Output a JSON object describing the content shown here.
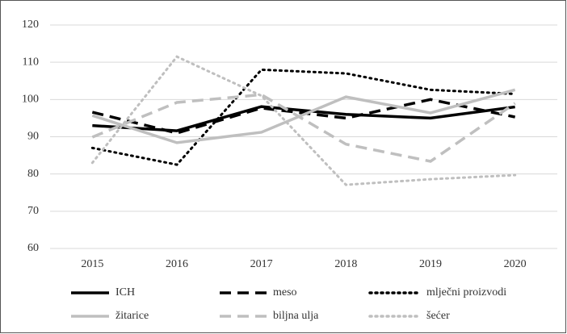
{
  "chart_data": {
    "type": "line",
    "categories": [
      "2015",
      "2016",
      "2017",
      "2018",
      "2019",
      "2020"
    ],
    "series": [
      {
        "name": "ICH",
        "color": "#000000",
        "dash": "solid",
        "values": [
          93,
          91.6,
          98.1,
          96,
          95,
          98
        ]
      },
      {
        "name": "meso",
        "color": "#000000",
        "dash": "dashed",
        "values": [
          96.6,
          91,
          97.7,
          95,
          100,
          95.3
        ]
      },
      {
        "name": "mlječni proizvodi",
        "color": "#000000",
        "dash": "dotted",
        "values": [
          87,
          82.5,
          108,
          107,
          102.6,
          101.5
        ]
      },
      {
        "name": "žitarice",
        "color": "#bfbfbf",
        "dash": "solid",
        "values": [
          95.7,
          88.4,
          91.2,
          100.7,
          96.4,
          102.6
        ]
      },
      {
        "name": "biljna ulja",
        "color": "#bfbfbf",
        "dash": "dashed",
        "values": [
          89.9,
          99.2,
          101.3,
          88,
          83.4,
          99
        ]
      },
      {
        "name": "šećer",
        "color": "#bfbfbf",
        "dash": "dotted",
        "values": [
          83,
          111.5,
          101,
          77.1,
          78.6,
          79.7
        ]
      }
    ],
    "ylim": [
      60,
      120
    ],
    "yticks": [
      60,
      70,
      80,
      90,
      100,
      110,
      120
    ],
    "grid": true,
    "legend": "bottom"
  }
}
